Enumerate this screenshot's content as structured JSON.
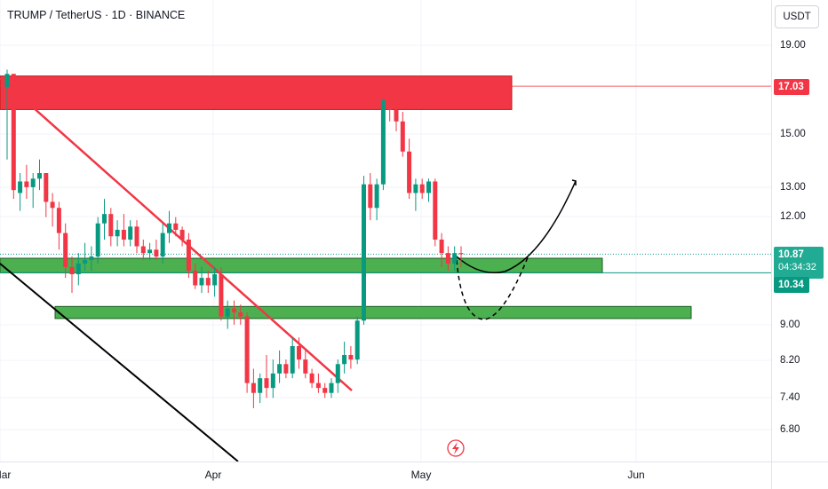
{
  "header": {
    "symbol_title": "TRUMP / TetherUS · 1D · BINANCE",
    "currency": "USDT"
  },
  "colors": {
    "up": "#089981",
    "down": "#f23645",
    "zone_red": "#f23645",
    "zone_green": "#4caf50",
    "trendline": "#f23645",
    "channel_line": "#000000",
    "projection": "#000000"
  },
  "price_axis": {
    "ticks": [
      "19.00",
      "15.00",
      "13.00",
      "12.00",
      "9.00",
      "8.20",
      "7.40",
      "6.80"
    ],
    "tag_resistance": "17.03",
    "tag_last_price": "10.87",
    "tag_countdown": "04:34:32",
    "tag_support": "10.34"
  },
  "time_axis": {
    "labels": [
      "Mar",
      "Apr",
      "May",
      "Jun"
    ]
  },
  "chart_data": {
    "type": "candlestick",
    "y_scale": "log",
    "ylim": [
      6.4,
      21.5
    ],
    "ohlc": [
      [
        17.0,
        17.8,
        14.0,
        17.6
      ],
      [
        17.6,
        17.6,
        12.6,
        12.9
      ],
      [
        12.8,
        13.5,
        12.2,
        13.2
      ],
      [
        13.2,
        13.8,
        12.6,
        13.0
      ],
      [
        13.0,
        13.5,
        12.3,
        13.3
      ],
      [
        13.3,
        14.0,
        12.9,
        13.5
      ],
      [
        13.5,
        13.5,
        12.0,
        12.5
      ],
      [
        12.5,
        12.8,
        11.7,
        12.3
      ],
      [
        12.3,
        12.5,
        11.0,
        11.5
      ],
      [
        11.5,
        11.8,
        10.2,
        10.5
      ],
      [
        10.5,
        10.8,
        9.8,
        10.3
      ],
      [
        10.3,
        10.9,
        10.0,
        10.6
      ],
      [
        10.6,
        11.2,
        10.4,
        10.7
      ],
      [
        10.7,
        11.1,
        10.4,
        10.8
      ],
      [
        10.8,
        12.0,
        10.6,
        11.8
      ],
      [
        11.8,
        12.6,
        11.3,
        12.1
      ],
      [
        12.1,
        12.3,
        11.1,
        11.4
      ],
      [
        11.4,
        11.9,
        11.1,
        11.6
      ],
      [
        11.6,
        12.1,
        11.1,
        11.3
      ],
      [
        11.3,
        11.9,
        11.1,
        11.7
      ],
      [
        11.7,
        11.9,
        10.9,
        11.1
      ],
      [
        11.1,
        11.3,
        10.7,
        10.9
      ],
      [
        10.9,
        11.2,
        10.7,
        11.0
      ],
      [
        11.0,
        11.3,
        10.7,
        10.8
      ],
      [
        10.8,
        11.8,
        10.6,
        11.5
      ],
      [
        11.5,
        12.2,
        11.2,
        11.8
      ],
      [
        11.8,
        12.0,
        11.4,
        11.6
      ],
      [
        11.6,
        11.7,
        11.1,
        11.3
      ],
      [
        11.3,
        11.5,
        10.2,
        10.4
      ],
      [
        10.4,
        10.6,
        9.9,
        10.0
      ],
      [
        10.0,
        10.5,
        9.8,
        10.2
      ],
      [
        10.2,
        10.4,
        9.8,
        10.0
      ],
      [
        10.0,
        10.5,
        9.7,
        10.3
      ],
      [
        10.3,
        10.5,
        9.1,
        9.2
      ],
      [
        9.2,
        9.6,
        8.9,
        9.4
      ],
      [
        9.4,
        9.6,
        9.0,
        9.3
      ],
      [
        9.3,
        9.5,
        9.0,
        9.2
      ],
      [
        9.2,
        9.3,
        7.5,
        7.7
      ],
      [
        7.7,
        8.0,
        7.2,
        7.5
      ],
      [
        7.5,
        7.9,
        7.3,
        7.8
      ],
      [
        7.8,
        8.3,
        7.4,
        7.6
      ],
      [
        7.6,
        8.2,
        7.4,
        7.9
      ],
      [
        7.9,
        8.4,
        7.7,
        8.1
      ],
      [
        8.1,
        8.2,
        7.8,
        7.9
      ],
      [
        7.9,
        8.7,
        7.8,
        8.5
      ],
      [
        8.5,
        8.7,
        8.0,
        8.2
      ],
      [
        8.2,
        8.4,
        7.8,
        7.9
      ],
      [
        7.9,
        8.0,
        7.6,
        7.7
      ],
      [
        7.7,
        7.9,
        7.5,
        7.6
      ],
      [
        7.6,
        7.7,
        7.4,
        7.5
      ],
      [
        7.5,
        7.8,
        7.4,
        7.7
      ],
      [
        7.7,
        8.2,
        7.5,
        8.1
      ],
      [
        8.1,
        8.6,
        7.9,
        8.3
      ],
      [
        8.3,
        8.5,
        8.0,
        8.2
      ],
      [
        8.2,
        9.2,
        8.1,
        9.1
      ],
      [
        9.1,
        13.4,
        9.0,
        13.1
      ],
      [
        13.1,
        13.5,
        11.9,
        12.3
      ],
      [
        12.3,
        13.3,
        11.9,
        13.1
      ],
      [
        13.1,
        16.5,
        12.9,
        16.4
      ],
      [
        16.4,
        17.1,
        15.5,
        16.0
      ],
      [
        16.0,
        16.6,
        15.1,
        15.5
      ],
      [
        15.5,
        15.9,
        14.1,
        14.3
      ],
      [
        14.3,
        14.8,
        12.6,
        12.8
      ],
      [
        12.8,
        13.3,
        12.2,
        13.1
      ],
      [
        13.1,
        13.3,
        12.6,
        12.8
      ],
      [
        12.8,
        13.3,
        12.5,
        13.2
      ],
      [
        13.2,
        13.3,
        11.1,
        11.3
      ],
      [
        11.3,
        11.5,
        10.5,
        10.9
      ],
      [
        10.9,
        11.1,
        10.4,
        10.6
      ],
      [
        10.6,
        11.1,
        10.4,
        10.9
      ],
      [
        10.9,
        11.1,
        10.5,
        10.87
      ]
    ],
    "zones": [
      {
        "color": "red",
        "from": 16.0,
        "to": 17.5
      },
      {
        "color": "green",
        "from": 10.34,
        "to": 10.75
      },
      {
        "color": "green",
        "from": 9.15,
        "to": 9.45
      }
    ],
    "levels": [
      17.03,
      10.87,
      10.34
    ],
    "annotations": [
      "descending red trendline",
      "black channel line",
      "projected bounce paths (solid and dashed) with arrow"
    ]
  }
}
